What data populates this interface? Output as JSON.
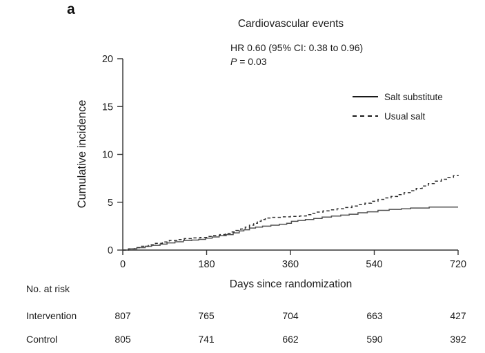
{
  "panel_label": "a",
  "chart_data": {
    "type": "line",
    "subtype": "step-cumulative-incidence",
    "title": "Cardiovascular events",
    "annotation_line1": "HR 0.60 (95% CI: 0.38 to 0.96)",
    "p_label": "P",
    "p_value": " = 0.03",
    "xlabel": "Days since randomization",
    "ylabel": "Cumulative incidence",
    "xlim": [
      0,
      720
    ],
    "ylim": [
      0,
      20
    ],
    "xticks": [
      0,
      180,
      360,
      540,
      720
    ],
    "yticks": [
      0,
      5,
      10,
      15,
      20
    ],
    "grid": false,
    "legend_position": "upper-right",
    "axis_color": "#333333",
    "series": [
      {
        "name": "Salt substitute",
        "style": "solid",
        "color": "#4f4f4f",
        "points": [
          [
            0,
            0
          ],
          [
            15,
            0.12
          ],
          [
            30,
            0.25
          ],
          [
            48,
            0.4
          ],
          [
            62,
            0.5
          ],
          [
            80,
            0.62
          ],
          [
            95,
            0.75
          ],
          [
            112,
            0.87
          ],
          [
            130,
            1.0
          ],
          [
            148,
            1.05
          ],
          [
            163,
            1.12
          ],
          [
            178,
            1.25
          ],
          [
            192,
            1.37
          ],
          [
            207,
            1.5
          ],
          [
            222,
            1.62
          ],
          [
            237,
            1.8
          ],
          [
            250,
            2.0
          ],
          [
            260,
            2.12
          ],
          [
            272,
            2.3
          ],
          [
            285,
            2.4
          ],
          [
            300,
            2.5
          ],
          [
            318,
            2.6
          ],
          [
            336,
            2.7
          ],
          [
            352,
            2.8
          ],
          [
            362,
            3.0
          ],
          [
            376,
            3.1
          ],
          [
            392,
            3.2
          ],
          [
            410,
            3.3
          ],
          [
            428,
            3.45
          ],
          [
            448,
            3.55
          ],
          [
            468,
            3.65
          ],
          [
            486,
            3.75
          ],
          [
            505,
            3.9
          ],
          [
            525,
            4.0
          ],
          [
            548,
            4.15
          ],
          [
            572,
            4.25
          ],
          [
            598,
            4.32
          ],
          [
            618,
            4.4
          ],
          [
            658,
            4.5
          ],
          [
            720,
            4.5
          ]
        ]
      },
      {
        "name": "Usual salt",
        "style": "dashed",
        "color": "#2e2e2e",
        "points": [
          [
            0,
            0
          ],
          [
            12,
            0.12
          ],
          [
            26,
            0.25
          ],
          [
            40,
            0.4
          ],
          [
            55,
            0.55
          ],
          [
            70,
            0.7
          ],
          [
            85,
            0.85
          ],
          [
            100,
            1.0
          ],
          [
            116,
            1.1
          ],
          [
            132,
            1.2
          ],
          [
            150,
            1.27
          ],
          [
            166,
            1.32
          ],
          [
            180,
            1.42
          ],
          [
            194,
            1.52
          ],
          [
            208,
            1.62
          ],
          [
            220,
            1.75
          ],
          [
            232,
            1.9
          ],
          [
            243,
            2.05
          ],
          [
            253,
            2.2
          ],
          [
            263,
            2.4
          ],
          [
            272,
            2.6
          ],
          [
            281,
            2.8
          ],
          [
            289,
            3.0
          ],
          [
            297,
            3.2
          ],
          [
            306,
            3.35
          ],
          [
            322,
            3.42
          ],
          [
            340,
            3.47
          ],
          [
            360,
            3.52
          ],
          [
            380,
            3.57
          ],
          [
            394,
            3.7
          ],
          [
            404,
            3.85
          ],
          [
            416,
            3.97
          ],
          [
            430,
            4.1
          ],
          [
            445,
            4.2
          ],
          [
            460,
            4.32
          ],
          [
            476,
            4.45
          ],
          [
            492,
            4.6
          ],
          [
            506,
            4.75
          ],
          [
            520,
            4.9
          ],
          [
            534,
            5.1
          ],
          [
            548,
            5.3
          ],
          [
            562,
            5.45
          ],
          [
            576,
            5.6
          ],
          [
            590,
            5.8
          ],
          [
            604,
            6.0
          ],
          [
            617,
            6.2
          ],
          [
            630,
            6.45
          ],
          [
            643,
            6.7
          ],
          [
            656,
            6.95
          ],
          [
            670,
            7.2
          ],
          [
            684,
            7.4
          ],
          [
            698,
            7.6
          ],
          [
            710,
            7.78
          ],
          [
            720,
            7.85
          ]
        ]
      }
    ]
  },
  "risk_table": {
    "header": "No. at risk",
    "rows": [
      {
        "label": "Intervention",
        "values": [
          "807",
          "765",
          "704",
          "663",
          "427"
        ]
      },
      {
        "label": "Control",
        "values": [
          "805",
          "741",
          "662",
          "590",
          "392"
        ]
      }
    ]
  }
}
